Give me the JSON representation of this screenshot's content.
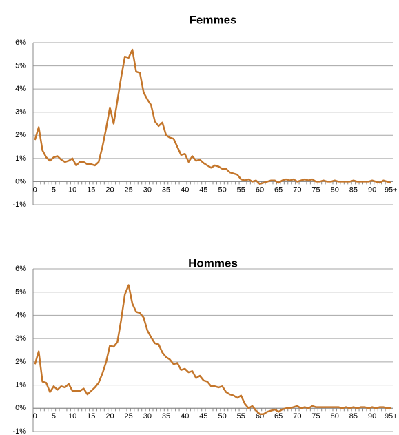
{
  "chart_data": [
    {
      "type": "line",
      "title": "Femmes",
      "categories": [
        "0",
        null,
        null,
        null,
        null,
        "5",
        null,
        null,
        null,
        null,
        "10",
        null,
        null,
        null,
        null,
        "15",
        null,
        null,
        null,
        null,
        "20",
        null,
        null,
        null,
        null,
        "25",
        null,
        null,
        null,
        null,
        "30",
        null,
        null,
        null,
        null,
        "35",
        null,
        null,
        null,
        null,
        "40",
        null,
        null,
        null,
        null,
        "45",
        null,
        null,
        null,
        null,
        "50",
        null,
        null,
        null,
        null,
        "55",
        null,
        null,
        null,
        null,
        "60",
        null,
        null,
        null,
        null,
        "65",
        null,
        null,
        null,
        null,
        "70",
        null,
        null,
        null,
        null,
        "75",
        null,
        null,
        null,
        null,
        "80",
        null,
        null,
        null,
        null,
        "85",
        null,
        null,
        null,
        null,
        "90",
        null,
        null,
        null,
        null,
        "95+"
      ],
      "series": [
        {
          "color": "#c4762b",
          "values": [
            1.8,
            2.35,
            1.35,
            1.05,
            0.9,
            1.05,
            1.1,
            0.95,
            0.85,
            0.9,
            1.0,
            0.7,
            0.85,
            0.85,
            0.75,
            0.75,
            0.7,
            0.85,
            1.5,
            2.3,
            3.2,
            2.5,
            3.5,
            4.5,
            5.4,
            5.35,
            5.7,
            4.75,
            4.7,
            3.85,
            3.55,
            3.3,
            2.6,
            2.4,
            2.55,
            2.0,
            1.9,
            1.85,
            1.5,
            1.15,
            1.2,
            0.85,
            1.1,
            0.9,
            0.95,
            0.8,
            0.7,
            0.6,
            0.7,
            0.65,
            0.55,
            0.55,
            0.4,
            0.35,
            0.3,
            0.1,
            0.05,
            0.1,
            0,
            0.05,
            -0.1,
            -0.05,
            0,
            0.05,
            0.05,
            -0.05,
            0.05,
            0.1,
            0.05,
            0.1,
            0,
            0.05,
            0.1,
            0.05,
            0.1,
            0,
            0,
            0.05,
            0,
            0,
            0.05,
            0,
            0,
            0,
            0,
            0.05,
            0,
            0,
            0,
            0,
            0.05,
            0,
            -0.05,
            0.05,
            0,
            -0.05
          ]
        }
      ],
      "ylim": [
        -1,
        6
      ],
      "yticks": [
        {
          "value": -1,
          "label": "-1%"
        },
        {
          "value": 0,
          "label": "0%"
        },
        {
          "value": 1,
          "label": "1%"
        },
        {
          "value": 2,
          "label": "2%"
        },
        {
          "value": 3,
          "label": "3%"
        },
        {
          "value": 4,
          "label": "4%"
        },
        {
          "value": 5,
          "label": "5%"
        },
        {
          "value": 6,
          "label": "6%"
        }
      ],
      "grid": true
    },
    {
      "type": "line",
      "title": "Hommes",
      "categories": [
        "0",
        null,
        null,
        null,
        null,
        "5",
        null,
        null,
        null,
        null,
        "10",
        null,
        null,
        null,
        null,
        "15",
        null,
        null,
        null,
        null,
        "20",
        null,
        null,
        null,
        null,
        "25",
        null,
        null,
        null,
        null,
        "30",
        null,
        null,
        null,
        null,
        "35",
        null,
        null,
        null,
        null,
        "40",
        null,
        null,
        null,
        null,
        "45",
        null,
        null,
        null,
        null,
        "50",
        null,
        null,
        null,
        null,
        "55",
        null,
        null,
        null,
        null,
        "60",
        null,
        null,
        null,
        null,
        "65",
        null,
        null,
        null,
        null,
        "70",
        null,
        null,
        null,
        null,
        "75",
        null,
        null,
        null,
        null,
        "80",
        null,
        null,
        null,
        null,
        "85",
        null,
        null,
        null,
        null,
        "90",
        null,
        null,
        null,
        null,
        "95+"
      ],
      "series": [
        {
          "color": "#c4762b",
          "values": [
            1.9,
            2.45,
            1.15,
            1.1,
            0.7,
            0.95,
            0.8,
            0.95,
            0.9,
            1.05,
            0.75,
            0.75,
            0.75,
            0.85,
            0.6,
            0.75,
            0.9,
            1.1,
            1.5,
            2.0,
            2.7,
            2.65,
            2.85,
            3.8,
            4.9,
            5.3,
            4.5,
            4.15,
            4.1,
            3.9,
            3.35,
            3.05,
            2.8,
            2.75,
            2.4,
            2.2,
            2.1,
            1.9,
            1.95,
            1.65,
            1.7,
            1.55,
            1.6,
            1.3,
            1.4,
            1.2,
            1.15,
            0.95,
            0.95,
            0.9,
            0.95,
            0.7,
            0.6,
            0.55,
            0.45,
            0.55,
            0.2,
            0,
            0.1,
            -0.1,
            -0.25,
            -0.25,
            -0.15,
            -0.1,
            -0.05,
            -0.15,
            -0.05,
            0,
            0,
            0.05,
            0.1,
            0,
            0.05,
            0,
            0.1,
            0.05,
            0.05,
            0.05,
            0.05,
            0.05,
            0.05,
            0.05,
            0,
            0.05,
            0,
            0.05,
            0,
            0.05,
            0.05,
            0,
            0.05,
            0,
            0.05,
            0.05,
            0,
            0
          ]
        }
      ],
      "ylim": [
        -1,
        6
      ],
      "yticks": [
        {
          "value": -1,
          "label": "-1%"
        },
        {
          "value": 0,
          "label": "0%"
        },
        {
          "value": 1,
          "label": "1%"
        },
        {
          "value": 2,
          "label": "2%"
        },
        {
          "value": 3,
          "label": "3%"
        },
        {
          "value": 4,
          "label": "4%"
        },
        {
          "value": 5,
          "label": "5%"
        },
        {
          "value": 6,
          "label": "6%"
        }
      ],
      "grid": true
    }
  ]
}
